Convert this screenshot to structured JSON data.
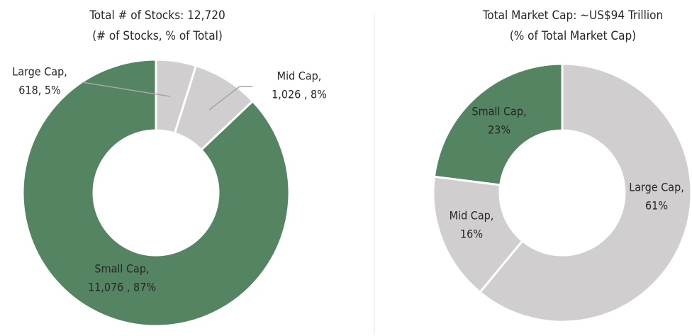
{
  "chart_data": [
    {
      "type": "donut",
      "title": "Total # of Stocks: 12,720",
      "subtitle": "(# of Stocks, % of Total)",
      "categories": [
        "Large Cap,",
        "Mid Cap,",
        "Small Cap,"
      ],
      "values": [
        618,
        1026,
        11076
      ],
      "value_labels": [
        "618, 5%",
        "1,026 , 8%",
        "11,076 , 87%"
      ],
      "colors": [
        "#d0cece",
        "#d0cece",
        "#548462"
      ]
    },
    {
      "type": "donut",
      "title": "Total Market Cap: ~US$94 Trillion",
      "subtitle": "(% of Total Market Cap)",
      "categories": [
        "Large Cap,",
        "Mid Cap,",
        "Small Cap,"
      ],
      "values": [
        61,
        16,
        23
      ],
      "value_labels": [
        "61%",
        "16%",
        "23%"
      ],
      "colors": [
        "#d0cece",
        "#d0cece",
        "#548462"
      ]
    }
  ]
}
